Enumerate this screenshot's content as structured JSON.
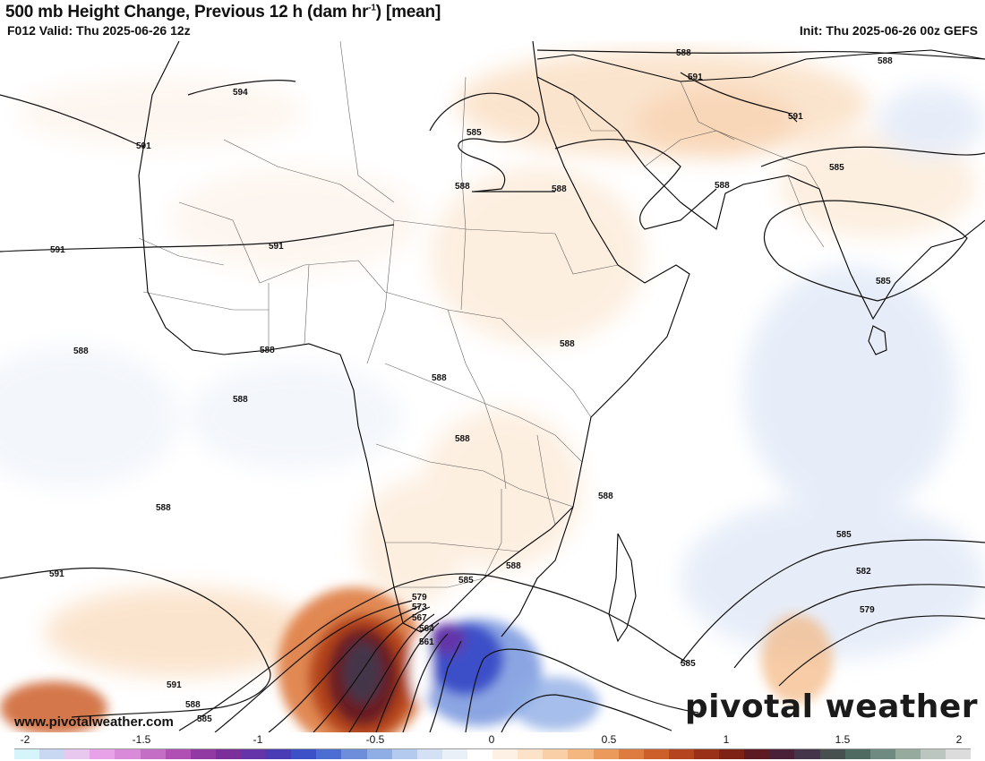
{
  "header": {
    "title_main": "500 mb Height Change, Previous 12 h (dam hr",
    "title_sup": "-1",
    "title_end": ") [mean]",
    "valid": "F012 Valid: Thu 2025-06-26 12z",
    "init": "Init: Thu 2025-06-26 00z GEFS"
  },
  "contour_labels": [
    "594",
    "591",
    "588",
    "585",
    "582",
    "579",
    "573",
    "567",
    "564",
    "561"
  ],
  "colorbar": {
    "tick_labels": [
      "-2",
      "-1.5",
      "-1",
      "-0.5",
      "0",
      "0.5",
      "1",
      "1.5",
      "2"
    ],
    "colors": [
      "#d6f5fa",
      "#c8d8f2",
      "#e8c8ef",
      "#e8a3e8",
      "#d98ad9",
      "#c46ec6",
      "#b050b4",
      "#923aa3",
      "#7a2f9a",
      "#6434a8",
      "#4a3cb4",
      "#3c50c8",
      "#4c6ed2",
      "#6e8edc",
      "#90aee6",
      "#b4caee",
      "#d4e0f4",
      "#eaf0f8",
      "#ffffff",
      "#fdf0e4",
      "#fbe2c8",
      "#f8cfa6",
      "#f4b780",
      "#eb9a5c",
      "#de7c40",
      "#cc5f2a",
      "#b5451f",
      "#9b3019",
      "#7e2216",
      "#5e1a22",
      "#4a2038",
      "#45354a",
      "#48504f",
      "#4f6a60",
      "#6f8a80",
      "#96aa9e",
      "#bcc6c0",
      "#dcdcdc"
    ],
    "accent_negative": "#3c50c8",
    "accent_positive": "#9b3019"
  },
  "branding": {
    "watermark": "pivotal weather",
    "site": "www.pivotalweather.com"
  }
}
